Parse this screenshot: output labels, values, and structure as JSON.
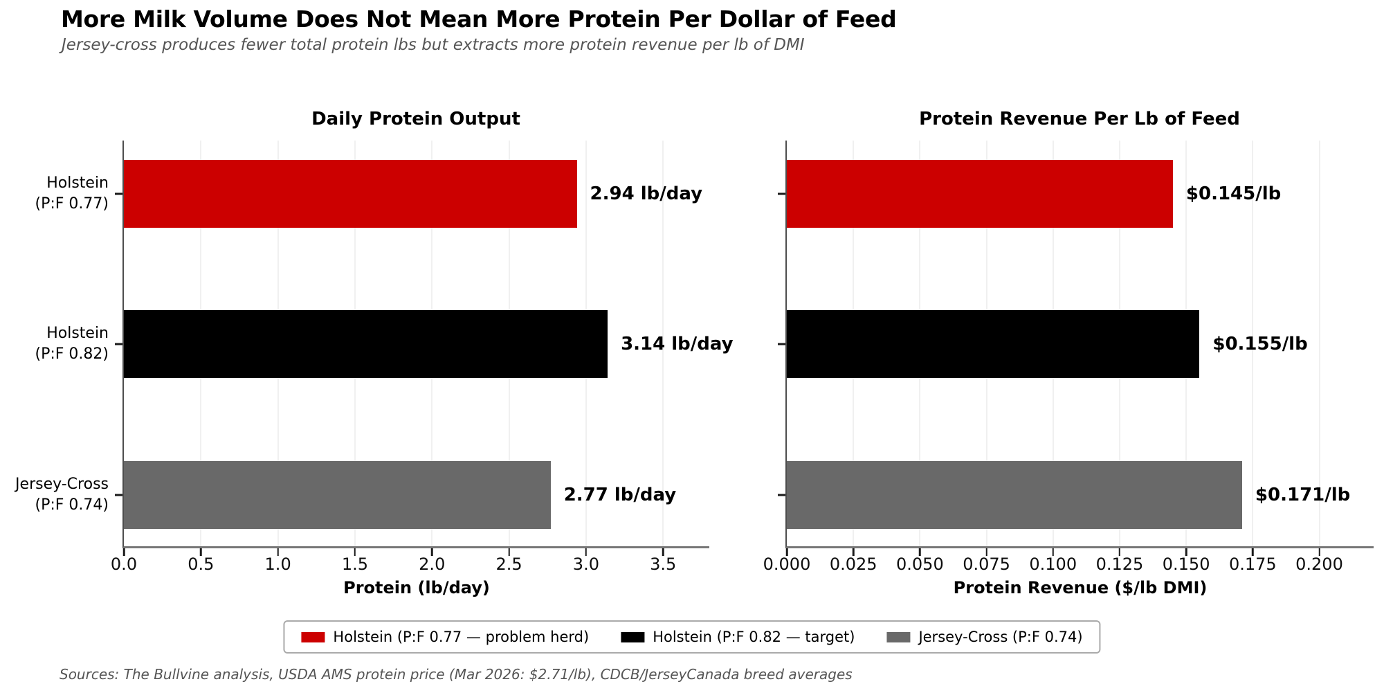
{
  "header": {
    "title": "More Milk Volume Does Not Mean More Protein Per Dollar of Feed",
    "subtitle": "Jersey-cross produces fewer total protein lbs but extracts more protein revenue per lb of DMI"
  },
  "chart_data": [
    {
      "type": "bar",
      "orientation": "horizontal",
      "title": "Daily Protein Output",
      "categories": [
        {
          "line1": "Holstein",
          "line2": "(P:F 0.77)"
        },
        {
          "line1": "Holstein",
          "line2": "(P:F 0.82)"
        },
        {
          "line1": "Jersey-Cross",
          "line2": "(P:F 0.74)"
        }
      ],
      "values": [
        2.94,
        3.14,
        2.77
      ],
      "bar_labels": [
        "2.94 lb/day",
        "3.14 lb/day",
        "2.77 lb/day"
      ],
      "bar_colors": [
        "#CC0000",
        "#000000",
        "#696969"
      ],
      "xlabel": "Protein (lb/day)",
      "xlim": [
        0,
        3.8
      ],
      "xticks": [
        0,
        0.5,
        1.0,
        1.5,
        2.0,
        2.5,
        3.0,
        3.5
      ],
      "xtick_labels": [
        "0.0",
        "0.5",
        "1.0",
        "1.5",
        "2.0",
        "2.5",
        "3.0",
        "3.5"
      ],
      "show_category_labels": true,
      "grid": true,
      "legend_position": "none"
    },
    {
      "type": "bar",
      "orientation": "horizontal",
      "title": "Protein Revenue Per Lb of Feed",
      "categories": [
        {
          "line1": "Holstein",
          "line2": "(P:F 0.77)"
        },
        {
          "line1": "Holstein",
          "line2": "(P:F 0.82)"
        },
        {
          "line1": "Jersey-Cross",
          "line2": "(P:F 0.74)"
        }
      ],
      "values": [
        0.145,
        0.155,
        0.171
      ],
      "bar_labels": [
        "$0.145/lb",
        "$0.155/lb",
        "$0.171/lb"
      ],
      "bar_colors": [
        "#CC0000",
        "#000000",
        "#696969"
      ],
      "xlabel": "Protein Revenue ($/lb DMI)",
      "xlim": [
        0,
        0.2204
      ],
      "xticks": [
        0,
        0.025,
        0.05,
        0.075,
        0.1,
        0.125,
        0.15,
        0.175,
        0.2
      ],
      "xtick_labels": [
        "0.000",
        "0.025",
        "0.050",
        "0.075",
        "0.100",
        "0.125",
        "0.150",
        "0.175",
        "0.200"
      ],
      "show_category_labels": false,
      "grid": true,
      "legend_position": "none"
    }
  ],
  "legend": [
    {
      "label": "Holstein (P:F 0.77 — problem herd)",
      "color": "#CC0000"
    },
    {
      "label": "Holstein (P:F 0.82 — target)",
      "color": "#000000"
    },
    {
      "label": "Jersey-Cross (P:F 0.74)",
      "color": "#696969"
    }
  ],
  "footer": {
    "sources": "Sources: The Bullvine analysis, USDA AMS protein price (Mar 2026: $2.71/lb), CDCB/JerseyCanada breed averages"
  },
  "colors": {
    "red": "#CC0000",
    "black": "#000000",
    "gray": "#696969",
    "grid": "#F0F0F0",
    "spine_left": "#4D4D4D",
    "spine_bottom": "#777777",
    "tick": "#1A1A1A",
    "muted_text": "#555555",
    "background": "#FFFFFF"
  }
}
